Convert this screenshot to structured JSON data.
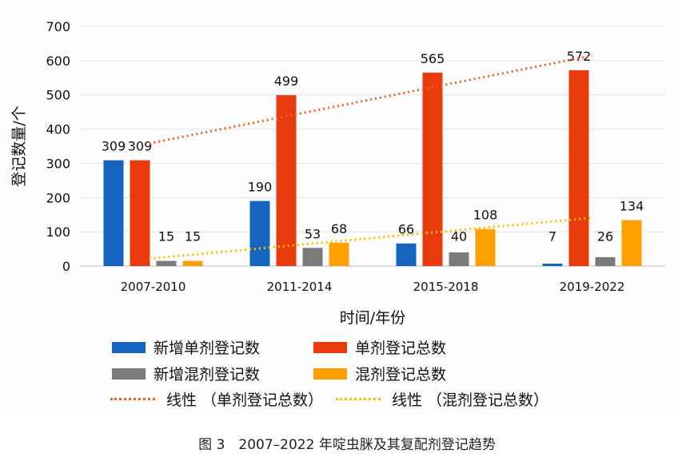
{
  "chart_data": {
    "type": "bar",
    "categories": [
      "2007-2010",
      "2011-2014",
      "2015-2018",
      "2019-2022"
    ],
    "series": [
      {
        "name": "新增单剂登记数",
        "values": [
          309,
          190,
          66,
          7
        ],
        "color": "#1565c0"
      },
      {
        "name": "单剂登记总数",
        "values": [
          309,
          499,
          565,
          572
        ],
        "color": "#e83a0c"
      },
      {
        "name": "新增混剂登记数",
        "values": [
          15,
          53,
          40,
          26
        ],
        "color": "#7a7a7a"
      },
      {
        "name": "混剂登记总数",
        "values": [
          15,
          68,
          108,
          134
        ],
        "color": "#ffa000"
      }
    ],
    "trendlines": [
      {
        "name": "线性 （单剂登记总数）",
        "of": "单剂登记总数",
        "type": "linear",
        "color": "#f06020"
      },
      {
        "name": "线性 （混剂登记总数）",
        "of": "混剂登记总数",
        "type": "linear",
        "color": "#f5c000"
      }
    ],
    "xlabel": "时间/年份",
    "ylabel": "登记数量/个",
    "ylim": [
      0,
      700
    ],
    "yticks": [
      0,
      100,
      200,
      300,
      400,
      500,
      600,
      700
    ],
    "grid": true,
    "legend_position": "bottom"
  },
  "caption": "图 3　2007–2022 年啶虫脒及其复配剂登记趋势"
}
